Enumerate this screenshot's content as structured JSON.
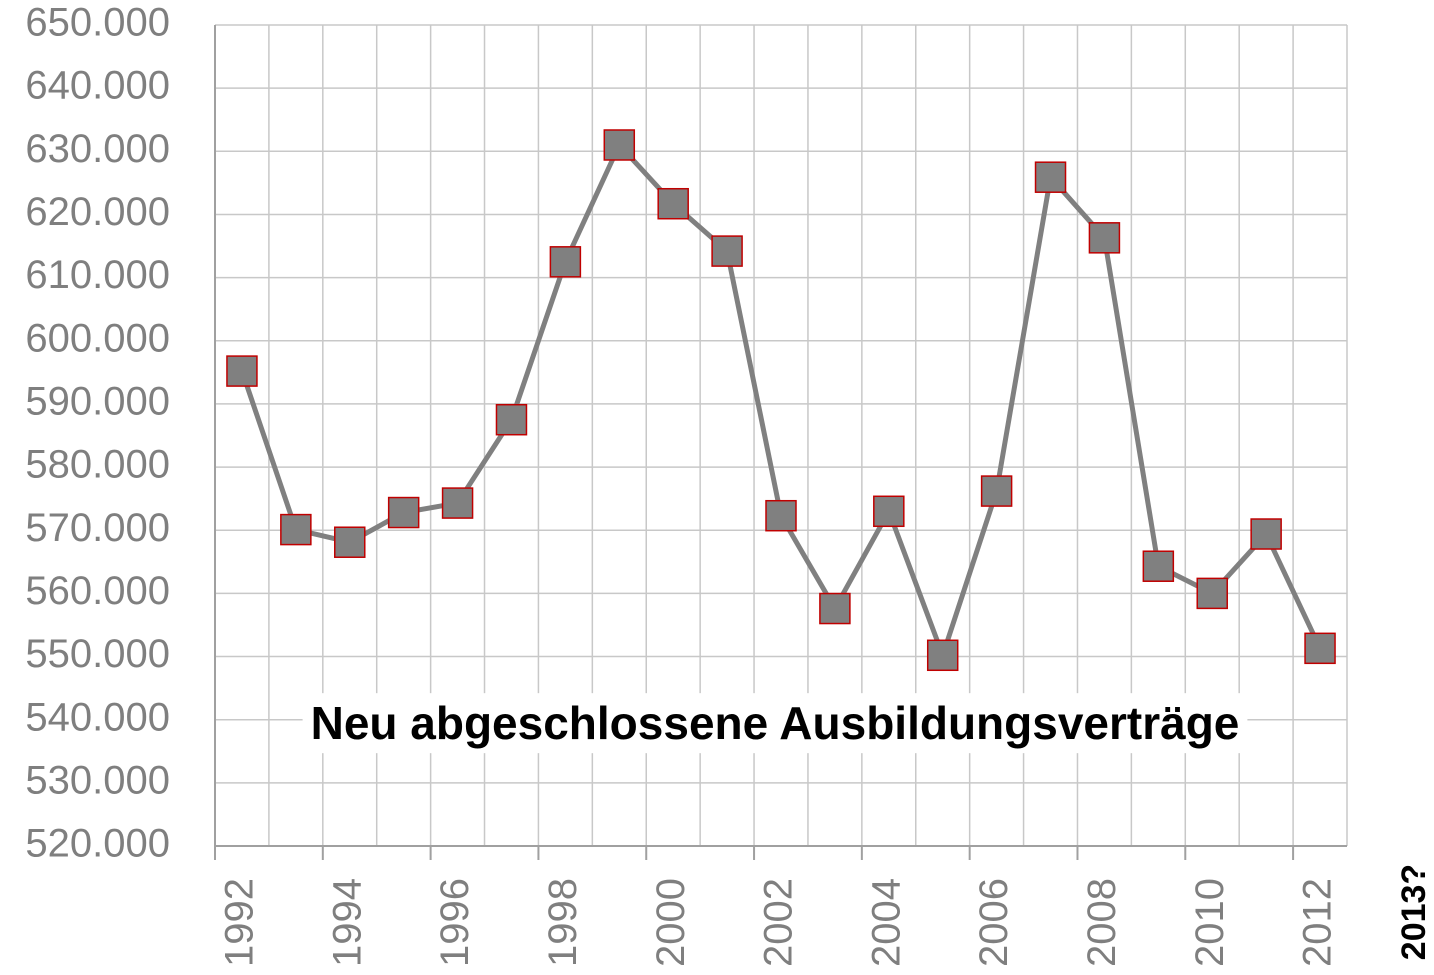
{
  "chart_data": {
    "type": "line",
    "annotations": [
      "Neu abgeschlossene Ausbildungsverträge",
      "2013?"
    ],
    "categories": [
      "1992",
      null,
      "1994",
      null,
      "1996",
      null,
      "1998",
      null,
      "2000",
      null,
      "2002",
      null,
      "2004",
      null,
      "2006",
      null,
      "2008",
      null,
      "2010",
      null,
      "2012"
    ],
    "series": [
      {
        "color": "#808080",
        "marker_edge_color": "#c00000",
        "values": [
          595200,
          570100,
          568100,
          572800,
          574300,
          587500,
          612500,
          631000,
          621700,
          614200,
          572300,
          557600,
          573000,
          550200,
          576200,
          625900,
          616300,
          564300,
          560000,
          569400,
          551300
        ]
      }
    ],
    "ylim": [
      520000,
      650000
    ],
    "yticks": [
      {
        "value": 520000,
        "label": "520.000"
      },
      {
        "value": 530000,
        "label": "530.000"
      },
      {
        "value": 540000,
        "label": "540.000"
      },
      {
        "value": 550000,
        "label": "550.000"
      },
      {
        "value": 560000,
        "label": "560.000"
      },
      {
        "value": 570000,
        "label": "570.000"
      },
      {
        "value": 580000,
        "label": "580.000"
      },
      {
        "value": 590000,
        "label": "590.000"
      },
      {
        "value": 600000,
        "label": "600.000"
      },
      {
        "value": 610000,
        "label": "610.000"
      },
      {
        "value": 620000,
        "label": "620.000"
      },
      {
        "value": 630000,
        "label": "630.000"
      },
      {
        "value": 640000,
        "label": "640.000"
      },
      {
        "value": 650000,
        "label": "650.000"
      }
    ],
    "grid": true
  }
}
